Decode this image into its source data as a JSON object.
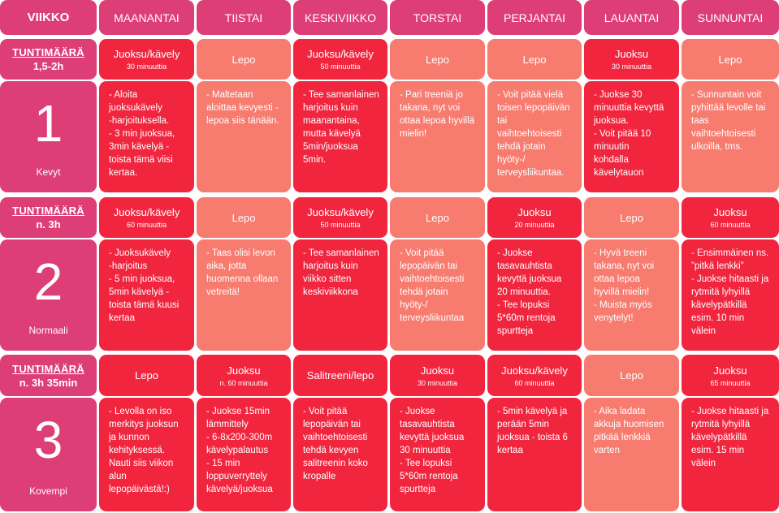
{
  "header": {
    "week_label": "VIIKKO",
    "days": [
      "MAANANTAI",
      "TIISTAI",
      "KESKIVIIKKO",
      "TORSTAI",
      "PERJANTAI",
      "LAUANTAI",
      "SUNNUNTAI"
    ]
  },
  "levels": [
    {
      "amount_label": "TUNTIMÄÄRÄ",
      "amount_value": "1,5-2h",
      "number": "1",
      "name": "Kevyt",
      "days": [
        {
          "type": "Juoksu/kävely",
          "sub": "30 minuuttia",
          "desc": "- Aloita\njuoksukävely\n-harjoituksella.\n- 3 min juoksua,\n3min kävelyä -\ntoista tämä viisi\nkertaa."
        },
        {
          "type": "Lepo",
          "sub": "",
          "desc": "- Maltetaan\naloittaa kevyesti -\nlepoa siis tänään."
        },
        {
          "type": "Juoksu/kävely",
          "sub": "50 minuuttia",
          "desc": "- Tee samanlainen\nharjoitus kuin\nmaanantaina,\nmutta kävelyä\n5min/juoksua\n5min."
        },
        {
          "type": "Lepo",
          "sub": "",
          "desc": "- Pari treeniä jo\ntakana, nyt voi\nottaa lepoa hyvillä\nmielin!"
        },
        {
          "type": "Lepo",
          "sub": "",
          "desc": "- Voit pitää vielä\ntoisen lepopäivän\ntai\nvaihtoehtoisesti\ntehdä jotain\nhyöty-/\nterveysliikuntaa."
        },
        {
          "type": "Juoksu",
          "sub": "30 minuuttia",
          "desc": "- Juokse 30\nminuuttia kevyttä\njuoksua.\n- Voit pitää 10\nminuutin\nkohdalla\nkävelytauon"
        },
        {
          "type": "Lepo",
          "sub": "",
          "desc": "- Sunnuntain voit\npyhittää levolle tai\ntaas\nvaihtoehtoisesti\nulkoilla, tms."
        }
      ]
    },
    {
      "amount_label": "TUNTIMÄÄRÄ",
      "amount_value": "n. 3h",
      "number": "2",
      "name": "Normaali",
      "days": [
        {
          "type": "Juoksu/kävely",
          "sub": "60 minuuttia",
          "desc": "- Juoksukävely\n-harjoitus\n- 5 min juoksua,\n5min kävelyä -\ntoista tämä kuusi\nkertaa"
        },
        {
          "type": "Lepo",
          "sub": "",
          "desc": "- Taas olisi levon\naika, jotta\nhuomenna ollaan\nvetreitä!"
        },
        {
          "type": "Juoksu/kävely",
          "sub": "50 minuuttia",
          "desc": "- Tee samanlainen\nharjoitus kuin\nviikko sitten\nkeskiviikkona"
        },
        {
          "type": "Lepo",
          "sub": "",
          "desc": "- Voit pitää\nlepopäivän tai\nvaihtoehtoisesti\ntehdä jotain\nhyöty-/\nterveysliikuntaa"
        },
        {
          "type": "Juoksu",
          "sub": "20 minuuttia",
          "desc": "- Juokse\n  tasavauhtista\n  kevyttä juoksua\n  20 minuuttia.\n- Tee lopuksi\n  5*60m rentoja\n  spurtteja"
        },
        {
          "type": "Lepo",
          "sub": "",
          "desc": "- Hyvä treeni\n  takana, nyt voi\n  ottaa lepoa\n  hyvillä mielin!\n- Muista myös\n  venytelyt!"
        },
        {
          "type": "Juoksu",
          "sub": "60 minuuttia",
          "desc": "- Ensimmäinen ns.\n  ”pitkä lenkki”\n- Juokse hitaasti ja\n  rytmitä lyhyillä\n  kävelypätkillä\n  esim. 10 min\n  välein"
        }
      ]
    },
    {
      "amount_label": "TUNTIMÄÄRÄ",
      "amount_value": "n. 3h 35min",
      "number": "3",
      "name": "Kovempi",
      "days": [
        {
          "type": "Lepo",
          "sub": "",
          "desc": "- Levolla on iso\nmerkitys juoksun\nja kunnon\nkehityksessä.\nNauti siis viikon\nalun\nlepopäivästä!:)"
        },
        {
          "type": "Juoksu",
          "sub": "n. 60 minuuttia",
          "desc": "- Juokse 15min\nlämmittely\n- 6-8x200-300m\n  kävelypalautus\n- 15 min\n  loppuverryttely\n  kävelyä/juoksua"
        },
        {
          "type": "Salitreeni/lepo",
          "sub": "",
          "desc": "- Voit pitää\nlepopäivän tai\nvaihtoehtoisesti\ntehdä kevyen\nsalitreenin koko\nkropalle"
        },
        {
          "type": "Juoksu",
          "sub": "30 minuuttia",
          "desc": "- Juokse\n  tasavauhtista\n  kevyttä juoksua\n  30 minuuttia\n- Tee lopuksi\n  5*60m rentoja\n  spurtteja"
        },
        {
          "type": "Juoksu/kävely",
          "sub": "60 minuuttia",
          "desc": "- 5min kävelyä ja\nperään 5min\njuoksua - toista 6\nkertaa"
        },
        {
          "type": "Lepo",
          "sub": "",
          "desc": "- Aika ladata\nakkuja huomisen\npitkää lenkkiä\nvarten"
        },
        {
          "type": "Juoksu",
          "sub": "65 minuuttia",
          "desc": "- Juokse hitaasti ja\nrytmitä lyhyillä\nkävelypätkillä\nesim. 15 min\nvälein"
        }
      ]
    }
  ],
  "colors": {
    "pink": "#dd3e76",
    "red": "#f2253f",
    "salmon": "#f77b6f"
  }
}
